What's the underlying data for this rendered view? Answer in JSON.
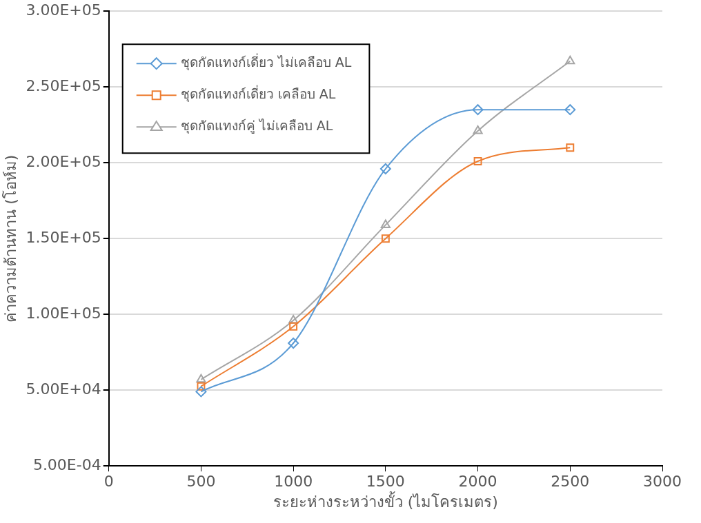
{
  "chart_data": {
    "type": "line",
    "xlabel": "ระยะห่างระหว่างขั้ว (ไมโครเมตร)",
    "ylabel": "ค่าความต้านทาน (โอห์ม)",
    "x": [
      500,
      1000,
      1500,
      2000,
      2500
    ],
    "series": [
      {
        "name": "ชุดกัดแทงก์เดี่ยว ไม่เคลือบ AL",
        "color": "#5b9bd5",
        "marker": "diamond",
        "values": [
          49000,
          81000,
          196000,
          235000,
          235000
        ]
      },
      {
        "name": "ชุดกัดแทงก์เดี่ยว เคลือบ AL",
        "color": "#ed7d31",
        "marker": "square",
        "values": [
          52500,
          92000,
          150000,
          201000,
          210000
        ]
      },
      {
        "name": "ชุดกัดแทงก์คู่ ไม่เคลือบ AL",
        "color": "#a5a5a5",
        "marker": "triangle",
        "values": [
          57000,
          96000,
          159000,
          221000,
          267000
        ]
      }
    ],
    "xlim": [
      0,
      3000
    ],
    "xticks": [
      0,
      500,
      1000,
      1500,
      2000,
      2500,
      3000
    ],
    "ylim": [
      0.0005,
      300000
    ],
    "yticks": [
      {
        "value": 0.0005,
        "label": "5.00E-04"
      },
      {
        "value": 50000,
        "label": "5.00E+04"
      },
      {
        "value": 100000,
        "label": "1.00E+05"
      },
      {
        "value": 150000,
        "label": "1.50E+05"
      },
      {
        "value": 200000,
        "label": "2.00E+05"
      },
      {
        "value": 250000,
        "label": "2.50E+05"
      },
      {
        "value": 300000,
        "label": "3.00E+05"
      }
    ],
    "grid": "y",
    "legend": "top left"
  }
}
